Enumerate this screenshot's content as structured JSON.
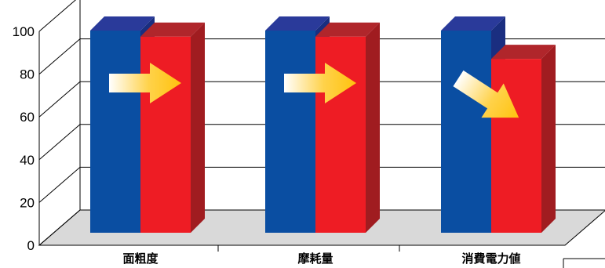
{
  "chart_data": {
    "type": "bar",
    "categories": [
      "面粗度",
      "摩耗量",
      "消費電力値"
    ],
    "series": [
      {
        "values": [
          100,
          100,
          100
        ]
      },
      {
        "values": [
          97,
          97,
          86
        ]
      }
    ],
    "ylim": [
      0,
      100
    ],
    "yticks": [
      0,
      20,
      40,
      60,
      80,
      100
    ],
    "grid": true,
    "legend": "none",
    "annotations": [
      {
        "category": "面粗度",
        "kind": "arrow",
        "direction": "flat"
      },
      {
        "category": "摩耗量",
        "kind": "arrow",
        "direction": "flat"
      },
      {
        "category": "消費電力値",
        "kind": "arrow",
        "direction": "down"
      }
    ]
  },
  "colors": {
    "series1_front": "#0a4ea2",
    "series1_top": "#2a3a9a",
    "series1_side": "#1a2e80",
    "series2_front": "#ee1c24",
    "series2_top": "#b0262b",
    "series2_side": "#a01c20",
    "floor": "#d9d9d9",
    "grid": "#000000",
    "arrow_start": "#ffffff",
    "arrow_end": "#ffc20e"
  }
}
